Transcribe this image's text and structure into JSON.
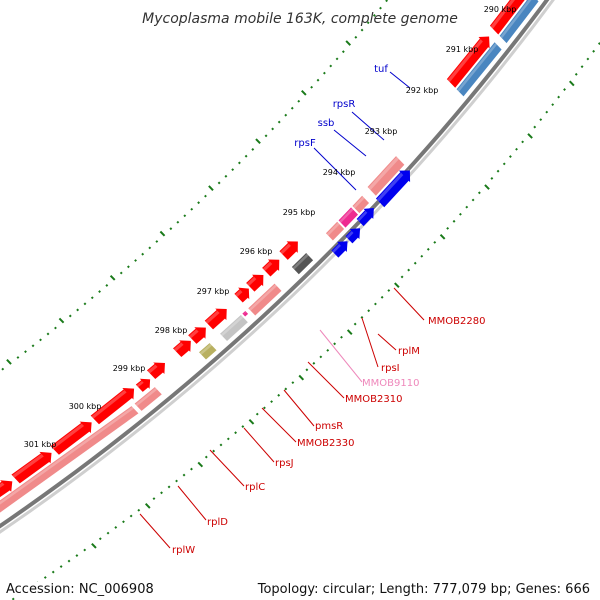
{
  "map": {
    "title": "Mycoplasma mobile 163K, complete genome",
    "accession": "Accession: NC_006908",
    "topology": "Topology: circular; Length: 777,079 bp; Genes: 666",
    "ticks": [
      "290 kbp",
      "291 kbp",
      "292 kbp",
      "293 kbp",
      "294 kbp",
      "295 kbp",
      "296 kbp",
      "297 kbp",
      "298 kbp",
      "299 kbp",
      "300 kbp",
      "301 kbp"
    ],
    "labels": [
      {
        "text": "tuf",
        "color": "#0000cc"
      },
      {
        "text": "rpsR",
        "color": "#0000cc"
      },
      {
        "text": "ssb",
        "color": "#0000cc"
      },
      {
        "text": "rpsF",
        "color": "#0000cc"
      },
      {
        "text": "MMOB2280",
        "color": "#cc0000"
      },
      {
        "text": "rplM",
        "color": "#cc0000"
      },
      {
        "text": "rpsI",
        "color": "#cc0000"
      },
      {
        "text": "MMOB9110",
        "color": "#ee88bb"
      },
      {
        "text": "MMOB2310",
        "color": "#cc0000"
      },
      {
        "text": "pmsR",
        "color": "#cc0000"
      },
      {
        "text": "MMOB2330",
        "color": "#cc0000"
      },
      {
        "text": "rpsJ",
        "color": "#cc0000"
      },
      {
        "text": "rplC",
        "color": "#cc0000"
      },
      {
        "text": "rplD",
        "color": "#cc0000"
      },
      {
        "text": "rplW",
        "color": "#cc0000"
      }
    ]
  },
  "colors": {
    "cds": "#ff0000",
    "rna": "#f08a8a",
    "blue": "#0000ee",
    "steel": "#4a86c0",
    "magenta": "#ee2a90",
    "gray": "#555555",
    "lightgray": "#c4c4c4",
    "olive": "#b8b060",
    "tick": "#1a7a1a"
  }
}
